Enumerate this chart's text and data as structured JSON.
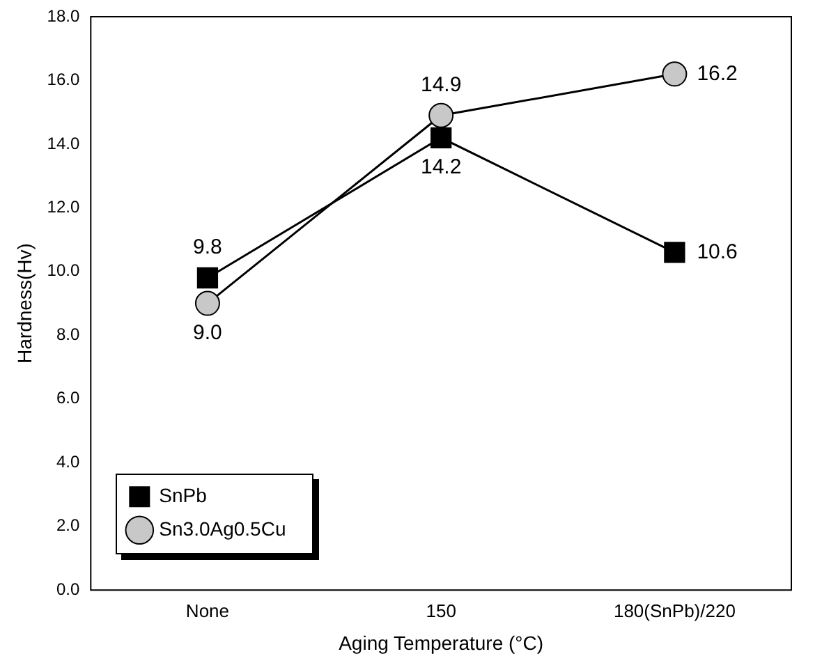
{
  "chart_data": {
    "type": "line",
    "xlabel": "Aging Temperature (°C)",
    "ylabel": "Hardness(Hv)",
    "categories": [
      "None",
      "150",
      "180(SnPb)/220"
    ],
    "series": [
      {
        "name": "SnPb",
        "color": "#000000",
        "marker": "square",
        "values": [
          9.8,
          14.2,
          10.6
        ],
        "value_labels": [
          "9.8",
          "14.2",
          "10.6"
        ]
      },
      {
        "name": "Sn3.0Ag0.5Cu",
        "color": "#c8c8c8",
        "marker": "circle",
        "values": [
          9.0,
          14.9,
          16.2
        ],
        "value_labels": [
          "9.0",
          "14.9",
          "16.2"
        ]
      }
    ],
    "ylim": [
      0,
      18
    ],
    "yticks": [
      {
        "value": 0,
        "label": "0.0"
      },
      {
        "value": 2,
        "label": "2.0"
      },
      {
        "value": 4,
        "label": "4.0"
      },
      {
        "value": 6,
        "label": "6.0"
      },
      {
        "value": 8,
        "label": "8.0"
      },
      {
        "value": 10,
        "label": "10.0"
      },
      {
        "value": 12,
        "label": "12.0"
      },
      {
        "value": 14,
        "label": "14.0"
      },
      {
        "value": 16,
        "label": "16.0"
      },
      {
        "value": 18,
        "label": "18.0"
      }
    ],
    "legend": "bottom left",
    "grid": false
  }
}
